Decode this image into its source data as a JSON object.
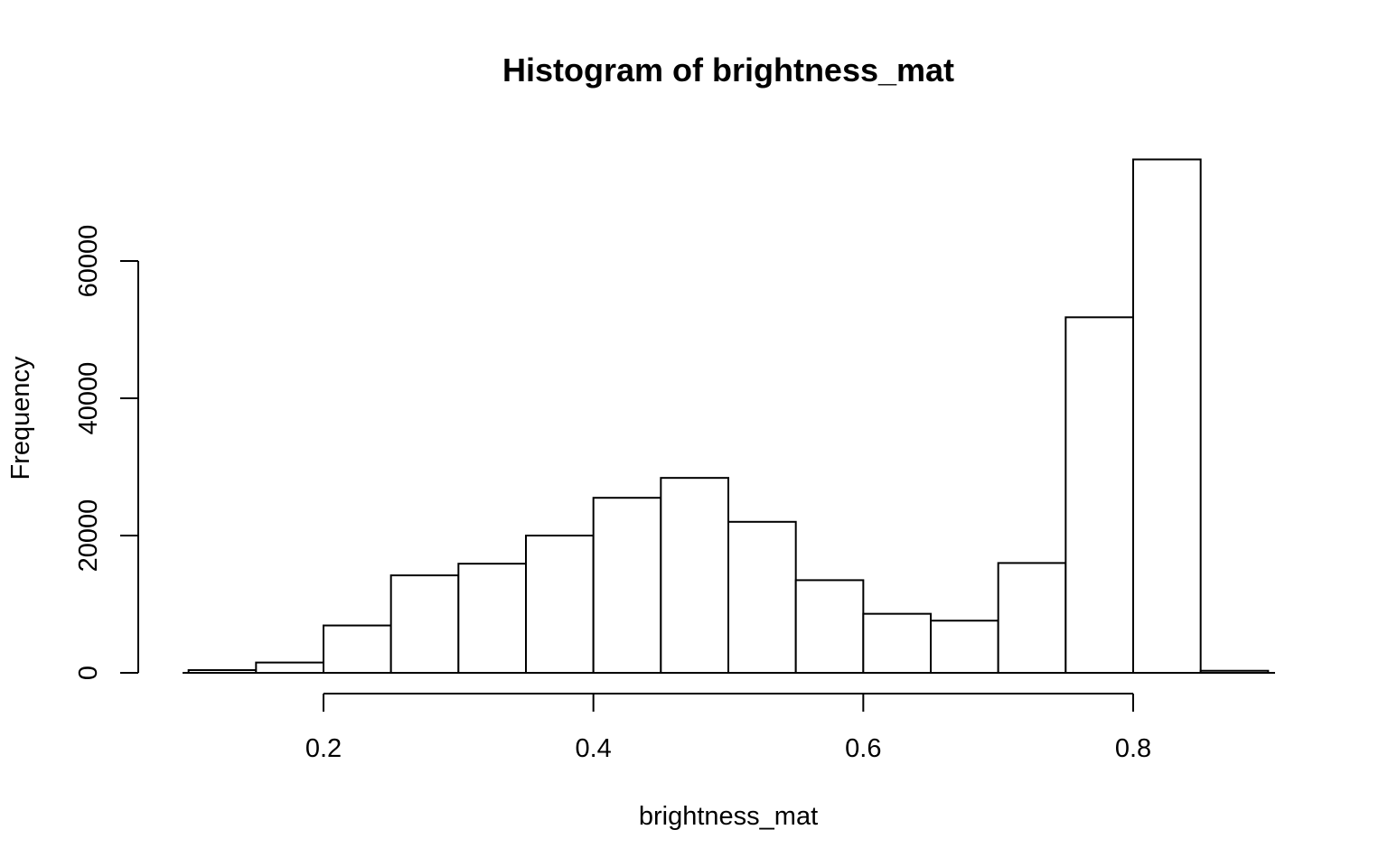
{
  "chart_data": {
    "type": "bar",
    "title": "Histogram of brightness_mat",
    "xlabel": "brightness_mat",
    "ylabel": "Frequency",
    "bin_edges": [
      0.1,
      0.15,
      0.2,
      0.25,
      0.3,
      0.35,
      0.4,
      0.45,
      0.5,
      0.55,
      0.6,
      0.65,
      0.7,
      0.75,
      0.8,
      0.85,
      0.9
    ],
    "values": [
      400,
      1500,
      6900,
      14200,
      15900,
      20000,
      25500,
      28400,
      22000,
      13500,
      8600,
      7600,
      16000,
      51800,
      74800,
      300
    ],
    "xlim": [
      0.05,
      0.95
    ],
    "ylim": [
      0,
      78000
    ],
    "x_ticks": [
      0.2,
      0.4,
      0.6,
      0.8
    ],
    "x_tick_labels": [
      "0.2",
      "0.4",
      "0.6",
      "0.8"
    ],
    "y_ticks": [
      0,
      20000,
      40000,
      60000
    ],
    "y_tick_labels": [
      "0",
      "20000",
      "40000",
      "60000"
    ],
    "bar_fill": "#ffffff",
    "bar_stroke": "#000000",
    "grid": false,
    "legend": "none"
  }
}
